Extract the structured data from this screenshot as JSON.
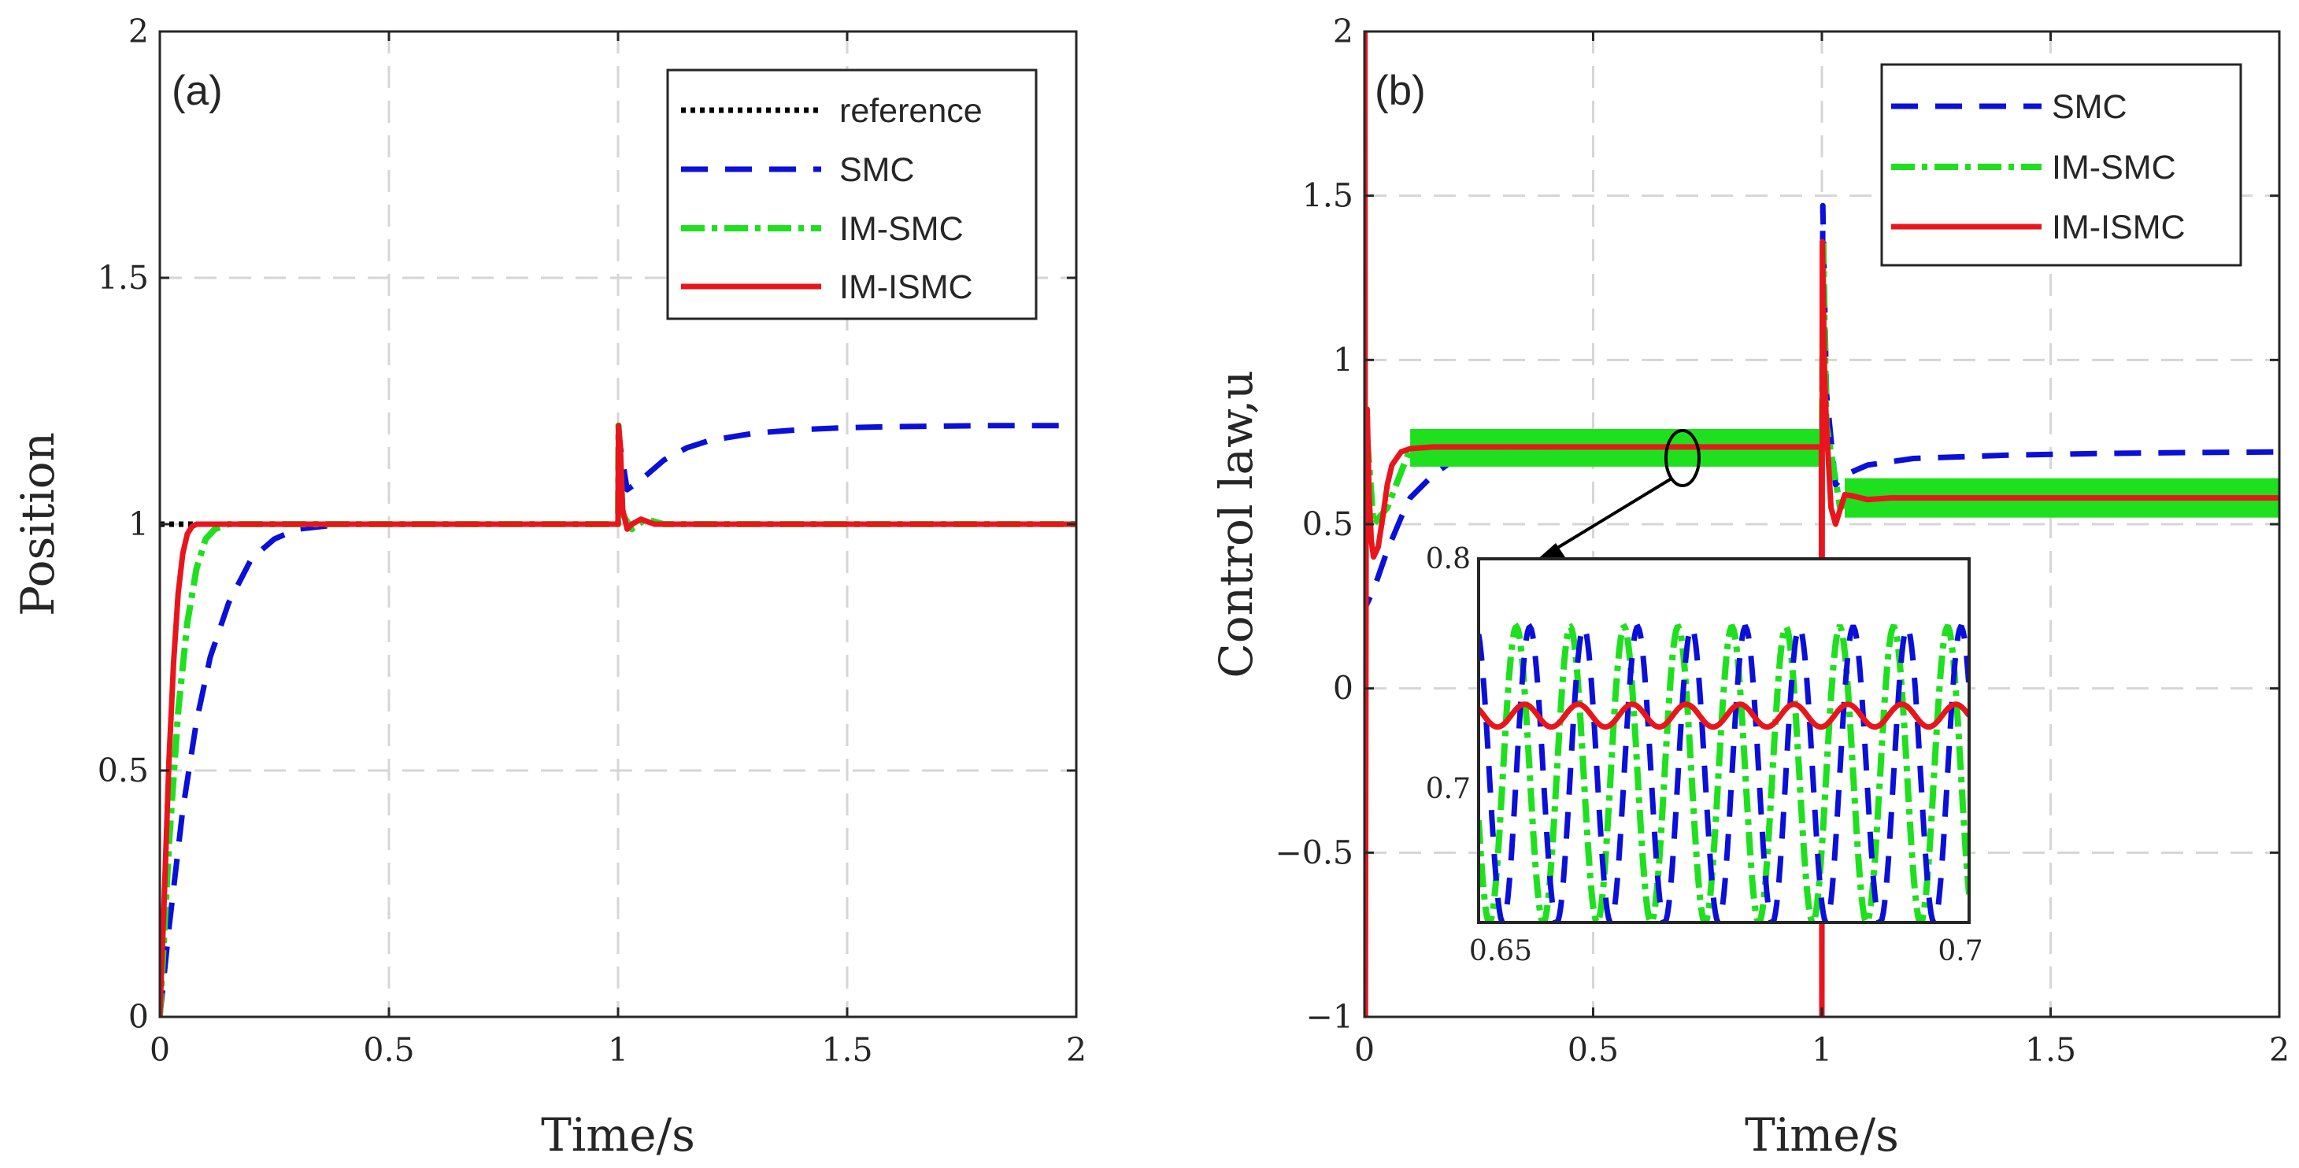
{
  "chart_data": [
    {
      "type": "line",
      "panel_label": "(a)",
      "xlabel": "Time/s",
      "ylabel": "Position",
      "xlim": [
        0,
        2
      ],
      "ylim": [
        0,
        2
      ],
      "xticks": [
        0,
        0.5,
        1,
        1.5,
        2
      ],
      "xtick_labels": [
        "0",
        "0.5",
        "1",
        "1.5",
        "2"
      ],
      "yticks": [
        0,
        0.5,
        1,
        1.5,
        2
      ],
      "ytick_labels": [
        "0",
        "0.5",
        "1",
        "1.5",
        "2"
      ],
      "grid": true,
      "legend_position": "top-right",
      "series": [
        {
          "name": "reference",
          "color": "#000000",
          "style": "dotted",
          "x": [
            0,
            0.1
          ],
          "y": [
            1,
            1
          ]
        },
        {
          "name": "SMC",
          "color": "#0a10d8",
          "style": "dashed",
          "x": [
            0,
            0.02,
            0.05,
            0.08,
            0.11,
            0.15,
            0.2,
            0.25,
            0.3,
            0.4,
            0.5,
            0.7,
            0.9,
            1.0,
            1.001,
            1.02,
            1.05,
            1.1,
            1.15,
            1.2,
            1.3,
            1.4,
            1.5,
            1.6,
            1.8,
            2.0
          ],
          "y": [
            0,
            0.18,
            0.42,
            0.6,
            0.73,
            0.84,
            0.93,
            0.97,
            0.99,
            1.0,
            1.0,
            1.0,
            1.0,
            1.0,
            1.18,
            1.07,
            1.09,
            1.13,
            1.155,
            1.17,
            1.185,
            1.192,
            1.196,
            1.198,
            1.2,
            1.2
          ]
        },
        {
          "name": "IM-SMC",
          "color": "#1fe01f",
          "style": "dashdot",
          "x": [
            0,
            0.02,
            0.04,
            0.06,
            0.08,
            0.1,
            0.12,
            0.15,
            0.2,
            0.5,
            1.0,
            1.001,
            1.01,
            1.03,
            1.06,
            1.1,
            1.5,
            2.0
          ],
          "y": [
            0,
            0.35,
            0.62,
            0.8,
            0.91,
            0.97,
            0.99,
            1.0,
            1.0,
            1.0,
            1.0,
            1.2,
            1.02,
            0.99,
            1.01,
            1.0,
            1.0,
            1.0
          ]
        },
        {
          "name": "IM-ISMC",
          "color": "#e8161c",
          "style": "solid",
          "x": [
            0,
            0.01,
            0.02,
            0.03,
            0.04,
            0.05,
            0.06,
            0.07,
            0.08,
            0.09,
            0.1,
            0.2,
            0.5,
            1.0,
            1.001,
            1.005,
            1.01,
            1.02,
            1.03,
            1.05,
            1.08,
            1.1,
            1.5,
            2.0
          ],
          "y": [
            0,
            0.25,
            0.52,
            0.72,
            0.86,
            0.94,
            0.98,
            0.995,
            1.0,
            1.0,
            1.0,
            1.0,
            1.0,
            1.0,
            1.2,
            1.16,
            1.03,
            0.99,
            1.0,
            1.01,
            1.0,
            1.0,
            1.0,
            1.0
          ]
        }
      ]
    },
    {
      "type": "line",
      "panel_label": "(b)",
      "xlabel": "Time/s",
      "ylabel": "Control law,u",
      "xlim": [
        0,
        2
      ],
      "ylim": [
        -1,
        2
      ],
      "xticks": [
        0,
        0.5,
        1,
        1.5,
        2
      ],
      "xtick_labels": [
        "0",
        "0.5",
        "1",
        "1.5",
        "2"
      ],
      "yticks": [
        -1,
        -0.5,
        0,
        0.5,
        1,
        1.5,
        2
      ],
      "ytick_labels": [
        "−1",
        "−0.5",
        "0",
        "0.5",
        "1",
        "1.5",
        "2"
      ],
      "grid": true,
      "legend_position": "top-right",
      "series": [
        {
          "name": "SMC",
          "color": "#0a10d8",
          "style": "dashed",
          "x": [
            0,
            0.003,
            0.02,
            0.05,
            0.08,
            0.1,
            0.15,
            0.2,
            0.3,
            0.5,
            0.8,
            0.99,
            1.0,
            1.002,
            1.01,
            1.03,
            1.05,
            1.1,
            1.2,
            1.4,
            1.6,
            1.8,
            2.0
          ],
          "y": [
            0.2,
            0.25,
            0.3,
            0.42,
            0.52,
            0.58,
            0.65,
            0.7,
            0.73,
            0.735,
            0.735,
            0.735,
            0.74,
            1.47,
            0.9,
            0.62,
            0.65,
            0.68,
            0.7,
            0.71,
            0.715,
            0.718,
            0.72
          ]
        },
        {
          "name": "IM-SMC",
          "color": "#1fe01f",
          "style": "dashdot",
          "band": [
            {
              "x_start": 0.1,
              "x_end": 1.0,
              "y_low": 0.675,
              "y_high": 0.79
            },
            {
              "x_start": 1.05,
              "x_end": 2.0,
              "y_low": 0.52,
              "y_high": 0.64
            }
          ],
          "x": [
            0,
            0.003,
            0.02,
            0.05,
            0.1,
            0.5,
            1.0,
            1.003,
            1.01,
            1.04,
            1.07,
            1.5,
            2.0
          ],
          "y": [
            0.75,
            0.82,
            0.5,
            0.55,
            0.73,
            0.735,
            0.735,
            1.35,
            0.8,
            0.55,
            0.58,
            0.58,
            0.58
          ]
        },
        {
          "name": "IM-ISMC",
          "color": "#e8161c",
          "style": "solid",
          "x": [
            0,
            0.001,
            0.002,
            0.004,
            0.006,
            0.01,
            0.015,
            0.02,
            0.03,
            0.04,
            0.05,
            0.06,
            0.08,
            0.1,
            0.15,
            0.3,
            0.5,
            0.8,
            0.999,
            1.0,
            1.001,
            1.003,
            1.006,
            1.01,
            1.02,
            1.03,
            1.05,
            1.07,
            1.1,
            1.15,
            1.3,
            1.6,
            2.0
          ],
          "y": [
            -1,
            2.0,
            -1,
            0.78,
            0.85,
            0.6,
            0.45,
            0.4,
            0.43,
            0.52,
            0.62,
            0.68,
            0.72,
            0.73,
            0.735,
            0.735,
            0.735,
            0.735,
            0.735,
            -1,
            1.36,
            1.2,
            0.95,
            0.8,
            0.55,
            0.5,
            0.59,
            0.585,
            0.575,
            0.58,
            0.58,
            0.58,
            0.58
          ]
        }
      ],
      "inset": {
        "xlim": [
          0.65,
          0.7
        ],
        "ylim": [
          0.645,
          0.805
        ],
        "xtick_labels": [
          "0.65",
          "0.7"
        ],
        "ytick_labels": [
          "0.8",
          "0.7"
        ],
        "yticks": [
          0.8,
          0.7
        ],
        "series": [
          {
            "name": "SMC",
            "mean": 0.71,
            "amplitude": 0.065,
            "cycles": 9.1,
            "phase": 0.3
          },
          {
            "name": "IM-SMC",
            "mean": 0.71,
            "amplitude": 0.065,
            "cycles": 9.1,
            "phase": 0.55
          },
          {
            "name": "IM-ISMC",
            "mean": 0.736,
            "amplitude": 0.005,
            "cycles": 9.1,
            "phase": 0.4
          }
        ]
      }
    }
  ]
}
